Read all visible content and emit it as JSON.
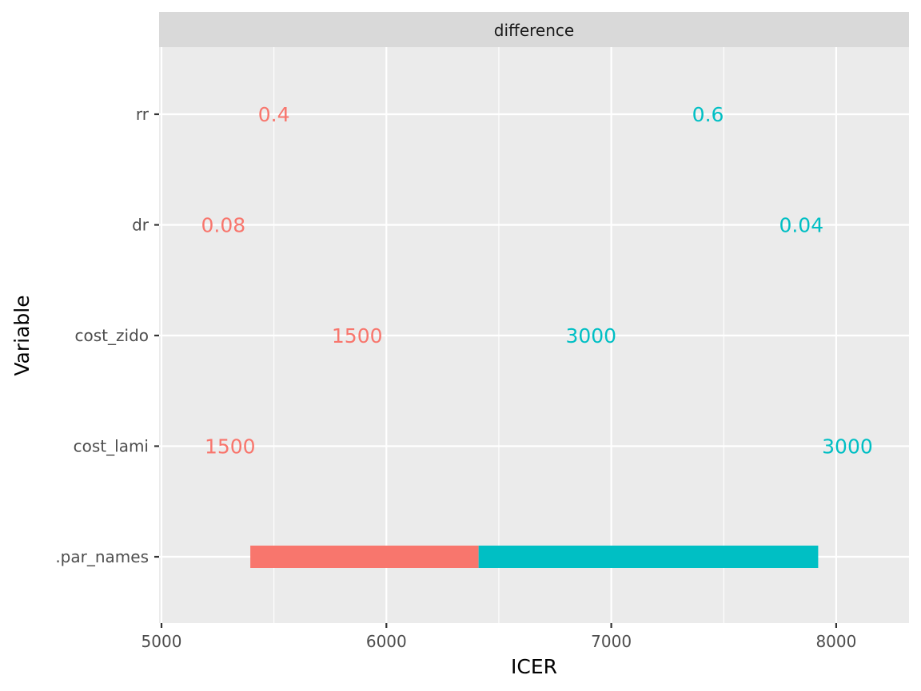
{
  "chart_data": {
    "type": "bar",
    "orientation": "horizontal",
    "facet": "difference",
    "xlabel": "ICER",
    "ylabel": "Variable",
    "xlim": [
      5000,
      8300
    ],
    "x_ticks": [
      "5000",
      "6000",
      "7000",
      "8000"
    ],
    "x_tick_values": [
      5000,
      6000,
      7000,
      8000
    ],
    "x_minor_values": [
      5500,
      6500,
      7500
    ],
    "categories": [
      ".par_names",
      "cost_lami",
      "cost_zido",
      "dr",
      "rr"
    ],
    "grid": true,
    "colors": {
      "low": "#F8766D",
      "high": "#00BFC4",
      "panel": "#EBEBEB",
      "strip": "#D9D9D9",
      "grid": "#FFFFFF"
    },
    "bars": [
      {
        "category": ".par_names",
        "start": 5395,
        "end": 6410,
        "color": "#F8766D"
      },
      {
        "category": ".par_names",
        "start": 6410,
        "end": 7920,
        "color": "#00BFC4"
      }
    ],
    "labels": [
      {
        "category": "rr",
        "x": 5500,
        "text": "0.4",
        "color": "#F8766D"
      },
      {
        "category": "rr",
        "x": 7430,
        "text": "0.6",
        "color": "#00BFC4"
      },
      {
        "category": "dr",
        "x": 5275,
        "text": "0.08",
        "color": "#F8766D"
      },
      {
        "category": "dr",
        "x": 7845,
        "text": "0.04",
        "color": "#00BFC4"
      },
      {
        "category": "cost_zido",
        "x": 5870,
        "text": "1500",
        "color": "#F8766D"
      },
      {
        "category": "cost_zido",
        "x": 6910,
        "text": "3000",
        "color": "#00BFC4"
      },
      {
        "category": "cost_lami",
        "x": 5305,
        "text": "1500",
        "color": "#F8766D"
      },
      {
        "category": "cost_lami",
        "x": 8050,
        "text": "3000",
        "color": "#00BFC4"
      }
    ]
  }
}
